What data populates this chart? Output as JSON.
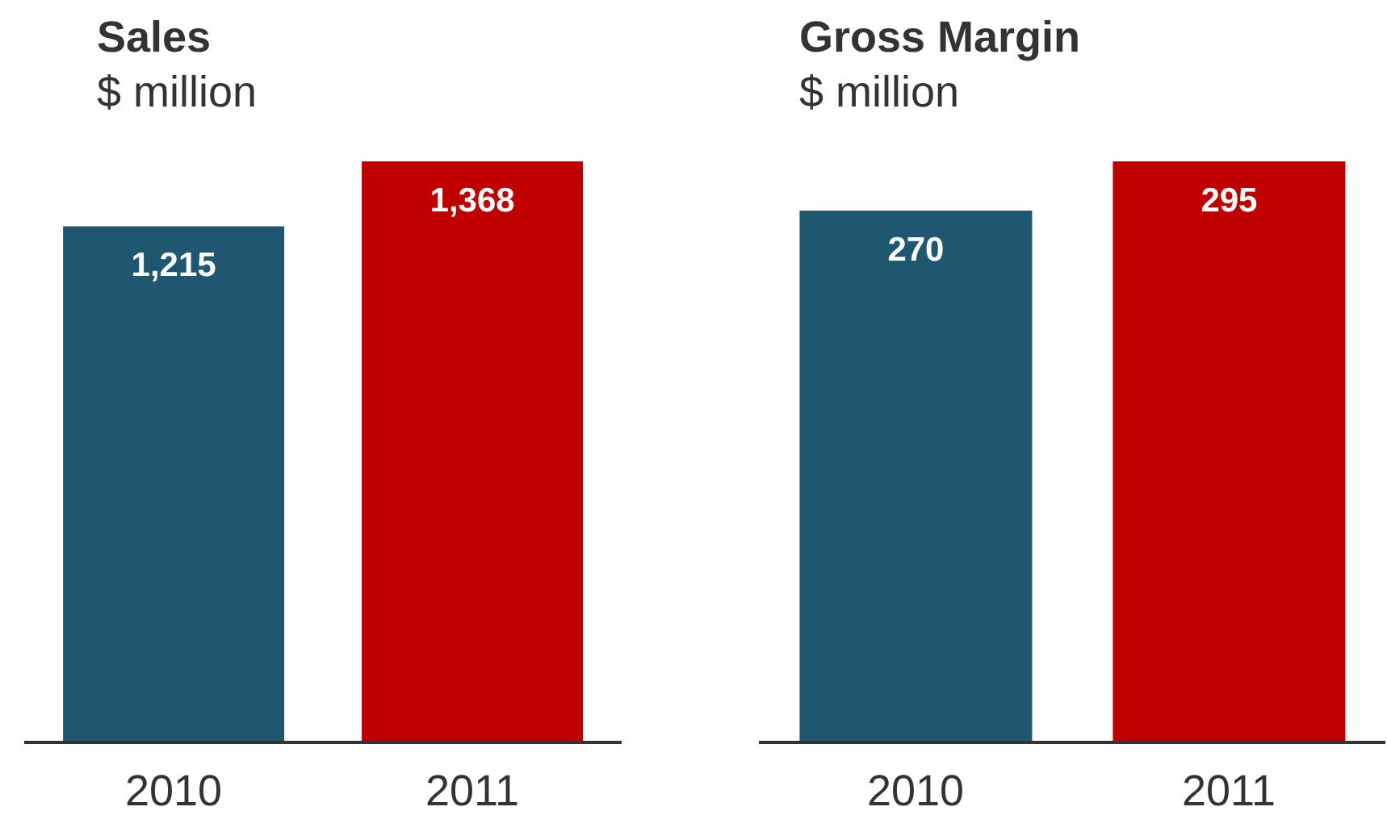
{
  "chart_data": [
    {
      "type": "bar",
      "title": "Sales",
      "subtitle": "$ million",
      "categories": [
        "2010",
        "2011"
      ],
      "values": [
        1215,
        1368
      ],
      "value_labels": [
        "1,215",
        "1,368"
      ],
      "colors": [
        "#1f5670",
        "#c00000"
      ],
      "tick_labels": "x"
    },
    {
      "type": "bar",
      "title": "Gross Margin",
      "subtitle": "$ million",
      "categories": [
        "2010",
        "2011"
      ],
      "values": [
        270,
        295
      ],
      "colors": [
        "#1f5670",
        "#c00000"
      ],
      "data_labels": true,
      "tick_labels": "x"
    }
  ]
}
